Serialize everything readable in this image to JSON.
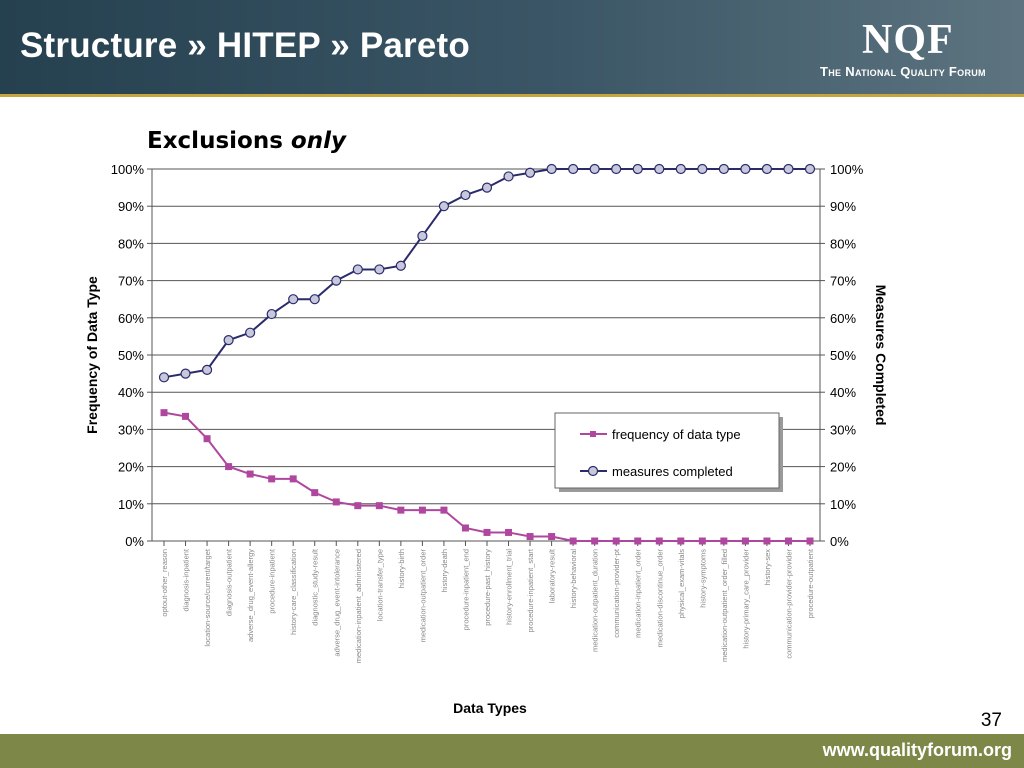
{
  "slide": {
    "title": "Structure » HITEP » Pareto",
    "subtitle_main": "Exclusions",
    "subtitle_em": "only",
    "page_number": "37",
    "footer_url": "www.qualityforum.org"
  },
  "logo": {
    "mark": "NQF",
    "tagline": "The National Quality Forum"
  },
  "colors": {
    "frequency": "#b0479e",
    "completed_line": "#2b2b6b",
    "completed_marker": "#c8c8dc",
    "header": "#2f4a5a",
    "footer": "#7d8747"
  },
  "chart_data": {
    "type": "line",
    "xlabel": "Data Types",
    "ylabel": "Frequency of Data Type",
    "y2label": "Measures Completed",
    "ylim": [
      0,
      100
    ],
    "y2lim": [
      0,
      100
    ],
    "yticks": [
      "0%",
      "10%",
      "20%",
      "30%",
      "40%",
      "50%",
      "60%",
      "70%",
      "80%",
      "90%",
      "100%"
    ],
    "y2ticks": [
      "0%",
      "10%",
      "20%",
      "30%",
      "40%",
      "50%",
      "60%",
      "70%",
      "80%",
      "90%",
      "100%"
    ],
    "grid": true,
    "legend_position": "right",
    "categories": [
      "optout-other_reason",
      "diagnosis-inpatient",
      "location-source/current/target",
      "diagnosis-outpatient",
      "adverse_drug_event-allergy",
      "procedure-inpatient",
      "history-care_classification",
      "diagnostic_study-result",
      "adverse_drug_event-intolerance",
      "medication-inpatient_administered",
      "location-transfer_type",
      "history-birth",
      "medication-outpatient_order",
      "history-death",
      "procedure-inpatient_end",
      "procedure-past_history",
      "history-enrollment_trial",
      "procedure-inpatient_start",
      "laboratory-result",
      "history-behavioral",
      "medication-outpatient_duration",
      "communication-provider-pt",
      "medication-inpatient_order",
      "medication-discontinue_order",
      "physical_exam-vitals",
      "history-symptoms",
      "medication-outpatient_order_filled",
      "history-primary_care_provider",
      "history-sex",
      "communication-provider-provider",
      "procedure-outpatient"
    ],
    "series": [
      {
        "name": "frequency of data type",
        "axis": "left",
        "values": [
          34.5,
          33.5,
          27.5,
          20,
          18,
          16.7,
          16.7,
          13,
          10.5,
          9.5,
          9.5,
          8.3,
          8.3,
          8.3,
          3.5,
          2.3,
          2.3,
          1.2,
          1.2,
          0,
          0,
          0,
          0,
          0,
          0,
          0,
          0,
          0,
          0,
          0,
          0
        ]
      },
      {
        "name": "measures completed",
        "axis": "right",
        "values": [
          44,
          45,
          46,
          54,
          56,
          61,
          65,
          65,
          70,
          73,
          73,
          74,
          82,
          90,
          93,
          95,
          98,
          99,
          100,
          100,
          100,
          100,
          100,
          100,
          100,
          100,
          100,
          100,
          100,
          100,
          100
        ]
      }
    ]
  }
}
